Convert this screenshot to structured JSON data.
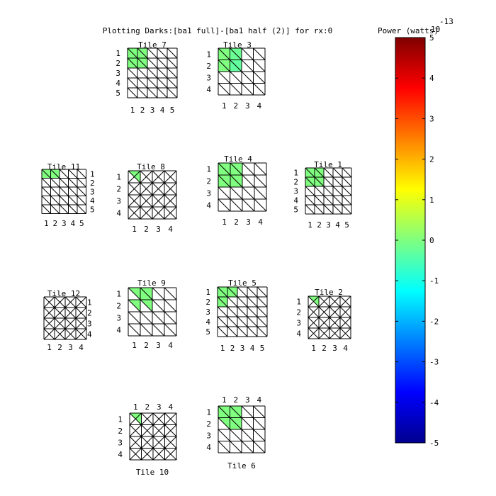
{
  "chart_data": {
    "type": "heatmap",
    "title": "Plotting Darks:[ba1 full]-[ba1 half (2)] for rx:0",
    "colorbar": {
      "label": "Power (watts)",
      "exponent": "10",
      "exponent_power": "-13",
      "range": [
        -5,
        5
      ],
      "ticks": [
        "5",
        "4",
        "3",
        "2",
        "1",
        "0",
        "-1",
        "-2",
        "-3",
        "-4",
        "-5"
      ],
      "colormap": "jet"
    },
    "tiles": [
      {
        "name": "Tile 7",
        "ncols": 5,
        "nrows": 5,
        "col_labels": [
          "1",
          "2",
          "3",
          "4",
          "5"
        ],
        "row_labels": [
          "1",
          "2",
          "3",
          "4",
          "5"
        ],
        "diag": "single",
        "cells": [
          [
            1,
            1,
            "full",
            0
          ],
          [
            2,
            1,
            "full",
            0
          ],
          [
            1,
            2,
            "full",
            0
          ],
          [
            2,
            2,
            "full",
            0
          ]
        ]
      },
      {
        "name": "Tile 3",
        "ncols": 4,
        "nrows": 4,
        "col_labels": [
          "1",
          "2",
          "3",
          "4"
        ],
        "row_labels": [
          "1",
          "2",
          "3",
          "4"
        ],
        "diag": "single",
        "cells": [
          [
            1,
            1,
            "full",
            0
          ],
          [
            2,
            1,
            "full",
            -0.2
          ],
          [
            1,
            2,
            "full",
            0
          ],
          [
            2,
            2,
            "full",
            -0.3
          ]
        ]
      },
      {
        "name": "Tile 11",
        "ncols": 5,
        "nrows": 5,
        "col_labels": [
          "1",
          "2",
          "3",
          "4",
          "5"
        ],
        "row_labels": [
          "1",
          "2",
          "3",
          "4",
          "5"
        ],
        "diag": "single",
        "cells": [
          [
            1,
            1,
            "full",
            0
          ],
          [
            2,
            1,
            "full",
            0
          ]
        ]
      },
      {
        "name": "Tile 8",
        "ncols": 4,
        "nrows": 4,
        "col_labels": [
          "1",
          "2",
          "3",
          "4"
        ],
        "row_labels": [
          "1",
          "2",
          "3",
          "4"
        ],
        "diag": "cross",
        "cells": [
          [
            1,
            1,
            "upper",
            0
          ]
        ]
      },
      {
        "name": "Tile 4",
        "ncols": 4,
        "nrows": 4,
        "col_labels": [
          "1",
          "2",
          "3",
          "4"
        ],
        "row_labels": [
          "1",
          "2",
          "3",
          "4"
        ],
        "diag": "single",
        "cells": [
          [
            1,
            1,
            "full",
            0
          ],
          [
            2,
            1,
            "full",
            0
          ],
          [
            1,
            2,
            "full",
            0
          ],
          [
            2,
            2,
            "full",
            0
          ]
        ]
      },
      {
        "name": "Tile 1",
        "ncols": 5,
        "nrows": 5,
        "col_labels": [
          "1",
          "2",
          "3",
          "4",
          "5"
        ],
        "row_labels": [
          "1",
          "2",
          "3",
          "4",
          "5"
        ],
        "diag": "single",
        "cells": [
          [
            1,
            1,
            "full",
            0
          ],
          [
            2,
            1,
            "full",
            0
          ],
          [
            1,
            2,
            "full",
            0
          ],
          [
            2,
            2,
            "full",
            0
          ]
        ]
      },
      {
        "name": "Tile 12",
        "ncols": 4,
        "nrows": 4,
        "col_labels": [
          "1",
          "2",
          "3",
          "4"
        ],
        "row_labels": [
          "1",
          "2",
          "3",
          "4"
        ],
        "diag": "cross",
        "cells": []
      },
      {
        "name": "Tile 9",
        "ncols": 4,
        "nrows": 4,
        "col_labels": [
          "1",
          "2",
          "3",
          "4"
        ],
        "row_labels": [
          "1",
          "2",
          "3",
          "4"
        ],
        "diag": "single",
        "cells": [
          [
            1,
            1,
            "upper",
            0
          ],
          [
            2,
            1,
            "full",
            0
          ],
          [
            1,
            2,
            "upper",
            0
          ],
          [
            2,
            2,
            "upper",
            0
          ]
        ]
      },
      {
        "name": "Tile 5",
        "ncols": 5,
        "nrows": 5,
        "col_labels": [
          "1",
          "2",
          "3",
          "4",
          "5"
        ],
        "row_labels": [
          "1",
          "2",
          "3",
          "4",
          "5"
        ],
        "diag": "single",
        "cells": [
          [
            1,
            1,
            "full",
            0
          ],
          [
            2,
            1,
            "full",
            0
          ],
          [
            1,
            2,
            "full",
            0
          ]
        ]
      },
      {
        "name": "Tile 2",
        "ncols": 4,
        "nrows": 4,
        "col_labels": [
          "1",
          "2",
          "3",
          "4"
        ],
        "row_labels": [
          "1",
          "2",
          "3",
          "4"
        ],
        "diag": "cross",
        "cells": [
          [
            1,
            1,
            "upper",
            0
          ]
        ]
      },
      {
        "name": "Tile 10",
        "ncols": 4,
        "nrows": 4,
        "col_labels": [
          "1",
          "2",
          "3",
          "4"
        ],
        "row_labels": [
          "1",
          "2",
          "3",
          "4"
        ],
        "diag": "cross",
        "cells": [
          [
            1,
            1,
            "upper",
            0
          ]
        ]
      },
      {
        "name": "Tile 6",
        "ncols": 4,
        "nrows": 4,
        "col_labels": [
          "1",
          "2",
          "3",
          "4"
        ],
        "row_labels": [
          "1",
          "2",
          "3",
          "4"
        ],
        "diag": "single",
        "cells": [
          [
            1,
            1,
            "full",
            0
          ],
          [
            2,
            1,
            "full",
            0
          ],
          [
            1,
            2,
            "upper",
            0
          ],
          [
            2,
            2,
            "full",
            0
          ]
        ]
      }
    ]
  }
}
